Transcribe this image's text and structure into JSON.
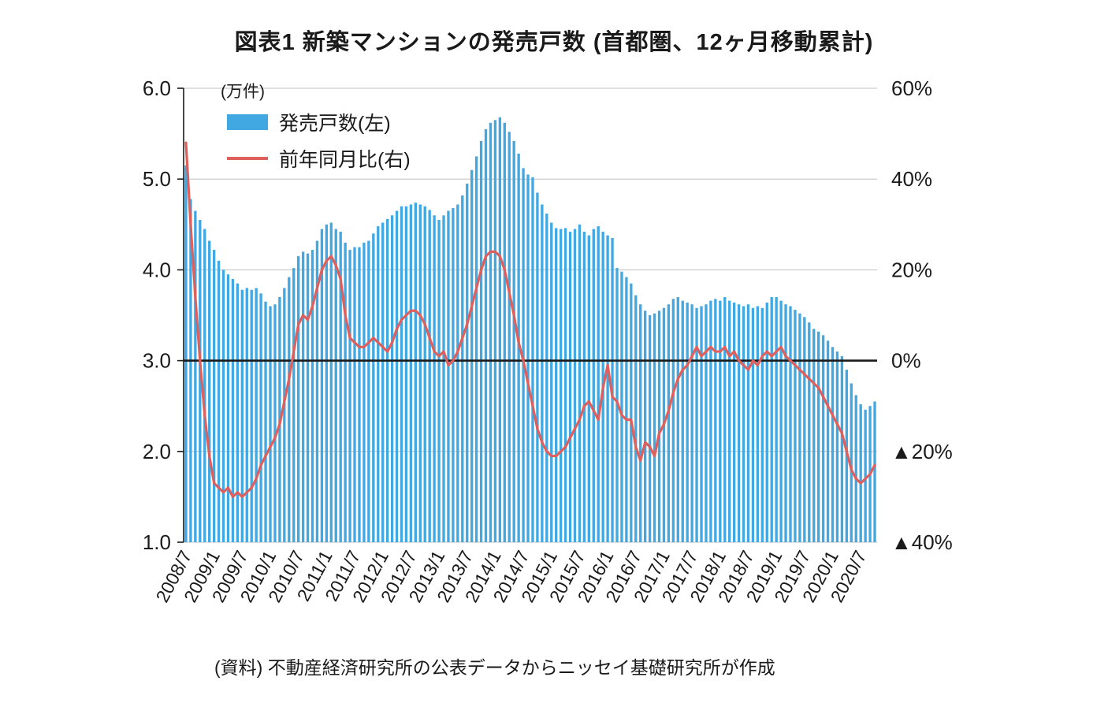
{
  "title": "図表1 新築マンションの発売戸数 (首都圏、12ヶ月移動累計)",
  "source_note": "(資料) 不動産経済研究所の公表データからニッセイ基礎研究所が作成",
  "colors": {
    "bar": "#41A8E1",
    "line": "#DF5F5D",
    "grid": "#BFBFBF",
    "zero_line": "#1a1a1a",
    "axis": "#1a1a1a",
    "text": "#1a1a1a"
  },
  "chart_data": {
    "type": "bar",
    "title": "図表1 新築マンションの発売戸数 (首都圏、12ヶ月移動累計)",
    "left_axis_unit": "(万件)",
    "left_axis_ticks": [
      "6.0",
      "5.0",
      "4.0",
      "3.0",
      "2.0",
      "1.0"
    ],
    "left_axis_range": [
      1.0,
      6.0
    ],
    "right_axis_ticks": [
      "60%",
      "40%",
      "20%",
      "0%",
      "▲20%",
      "▲40%"
    ],
    "right_axis_range": [
      -40,
      60
    ],
    "x_tick_step": 6,
    "x_tick_labels": [
      "2008/7",
      "2009/1",
      "2009/7",
      "2010/1",
      "2010/7",
      "2011/1",
      "2011/7",
      "2012/1",
      "2012/7",
      "2013/1",
      "2013/7",
      "2014/1",
      "2014/7",
      "2015/1",
      "2015/7",
      "2016/1",
      "2016/7",
      "2017/1",
      "2017/7",
      "2018/1",
      "2018/7",
      "2019/1",
      "2019/7",
      "2020/1",
      "2020/7"
    ],
    "categories": [
      "2008/7",
      "2008/8",
      "2008/9",
      "2008/10",
      "2008/11",
      "2008/12",
      "2009/1",
      "2009/2",
      "2009/3",
      "2009/4",
      "2009/5",
      "2009/6",
      "2009/7",
      "2009/8",
      "2009/9",
      "2009/10",
      "2009/11",
      "2009/12",
      "2010/1",
      "2010/2",
      "2010/3",
      "2010/4",
      "2010/5",
      "2010/6",
      "2010/7",
      "2010/8",
      "2010/9",
      "2010/10",
      "2010/11",
      "2010/12",
      "2011/1",
      "2011/2",
      "2011/3",
      "2011/4",
      "2011/5",
      "2011/6",
      "2011/7",
      "2011/8",
      "2011/9",
      "2011/10",
      "2011/11",
      "2011/12",
      "2012/1",
      "2012/2",
      "2012/3",
      "2012/4",
      "2012/5",
      "2012/6",
      "2012/7",
      "2012/8",
      "2012/9",
      "2012/10",
      "2012/11",
      "2012/12",
      "2013/1",
      "2013/2",
      "2013/3",
      "2013/4",
      "2013/5",
      "2013/6",
      "2013/7",
      "2013/8",
      "2013/9",
      "2013/10",
      "2013/11",
      "2013/12",
      "2014/1",
      "2014/2",
      "2014/3",
      "2014/4",
      "2014/5",
      "2014/6",
      "2014/7",
      "2014/8",
      "2014/9",
      "2014/10",
      "2014/11",
      "2014/12",
      "2015/1",
      "2015/2",
      "2015/3",
      "2015/4",
      "2015/5",
      "2015/6",
      "2015/7",
      "2015/8",
      "2015/9",
      "2015/10",
      "2015/11",
      "2015/12",
      "2016/1",
      "2016/2",
      "2016/3",
      "2016/4",
      "2016/5",
      "2016/6",
      "2016/7",
      "2016/8",
      "2016/9",
      "2016/10",
      "2016/11",
      "2016/12",
      "2017/1",
      "2017/2",
      "2017/3",
      "2017/4",
      "2017/5",
      "2017/6",
      "2017/7",
      "2017/8",
      "2017/9",
      "2017/10",
      "2017/11",
      "2017/12",
      "2018/1",
      "2018/2",
      "2018/3",
      "2018/4",
      "2018/5",
      "2018/6",
      "2018/7",
      "2018/8",
      "2018/9",
      "2018/10",
      "2018/11",
      "2018/12",
      "2019/1",
      "2019/2",
      "2019/3",
      "2019/4",
      "2019/5",
      "2019/6",
      "2019/7",
      "2019/8",
      "2019/9",
      "2019/10",
      "2019/11",
      "2019/12",
      "2020/1",
      "2020/2",
      "2020/3",
      "2020/4",
      "2020/5",
      "2020/6",
      "2020/7",
      "2020/8",
      "2020/9",
      "2020/10"
    ],
    "series": [
      {
        "name": "発売戸数(左)",
        "type": "bar",
        "axis": "left",
        "color": "#41A8E1",
        "values": [
          5.15,
          4.78,
          4.65,
          4.55,
          4.45,
          4.32,
          4.22,
          4.1,
          4.0,
          3.95,
          3.9,
          3.85,
          3.78,
          3.8,
          3.78,
          3.8,
          3.74,
          3.65,
          3.6,
          3.62,
          3.7,
          3.8,
          3.92,
          4.02,
          4.15,
          4.2,
          4.18,
          4.22,
          4.32,
          4.45,
          4.5,
          4.52,
          4.45,
          4.42,
          4.3,
          4.22,
          4.25,
          4.25,
          4.3,
          4.32,
          4.4,
          4.48,
          4.52,
          4.56,
          4.6,
          4.65,
          4.7,
          4.7,
          4.72,
          4.74,
          4.72,
          4.7,
          4.66,
          4.6,
          4.55,
          4.6,
          4.65,
          4.68,
          4.72,
          4.82,
          4.95,
          5.1,
          5.25,
          5.42,
          5.55,
          5.62,
          5.65,
          5.68,
          5.62,
          5.52,
          5.42,
          5.28,
          5.12,
          5.05,
          5.02,
          4.85,
          4.72,
          4.62,
          4.52,
          4.46,
          4.45,
          4.46,
          4.42,
          4.45,
          4.5,
          4.42,
          4.38,
          4.45,
          4.48,
          4.42,
          4.38,
          4.35,
          4.02,
          3.98,
          3.92,
          3.85,
          3.72,
          3.62,
          3.55,
          3.5,
          3.52,
          3.55,
          3.58,
          3.62,
          3.68,
          3.7,
          3.66,
          3.64,
          3.62,
          3.58,
          3.6,
          3.62,
          3.66,
          3.68,
          3.66,
          3.7,
          3.66,
          3.64,
          3.62,
          3.6,
          3.62,
          3.58,
          3.6,
          3.58,
          3.64,
          3.7,
          3.7,
          3.66,
          3.62,
          3.6,
          3.56,
          3.52,
          3.48,
          3.42,
          3.35,
          3.32,
          3.28,
          3.22,
          3.15,
          3.1,
          3.05,
          2.9,
          2.75,
          2.62,
          2.52,
          2.46,
          2.5,
          2.55
        ]
      },
      {
        "name": "前年同月比(右)",
        "type": "line",
        "axis": "right",
        "color": "#DF5F5D",
        "values": [
          48,
          30,
          14,
          0,
          -12,
          -21,
          -27,
          -28,
          -29,
          -28,
          -30,
          -29,
          -30,
          -29,
          -28,
          -26,
          -23,
          -21,
          -19,
          -17,
          -14,
          -9,
          -4,
          2,
          8,
          10,
          9,
          12,
          16,
          20,
          22,
          23,
          21,
          18,
          10,
          5,
          4,
          3,
          3,
          4,
          5,
          4,
          3,
          2,
          4,
          7,
          9,
          10,
          11,
          11,
          10,
          8,
          5,
          2,
          1,
          2,
          -1,
          0,
          2,
          5,
          8,
          12,
          16,
          20,
          23,
          24,
          24,
          23,
          20,
          15,
          10,
          4,
          0,
          -5,
          -10,
          -15,
          -18,
          -20,
          -21,
          -21,
          -20,
          -19,
          -17,
          -15,
          -13,
          -10,
          -9,
          -11,
          -13,
          -6,
          -1,
          -8,
          -9,
          -12,
          -13,
          -13,
          -19,
          -22,
          -18,
          -19,
          -21,
          -16,
          -14,
          -11,
          -7,
          -4,
          -2,
          -1,
          1,
          3,
          1,
          2,
          3,
          2,
          2,
          3,
          1,
          2,
          0,
          -1,
          -2,
          0,
          -1,
          1,
          2,
          1,
          2,
          3,
          1,
          0,
          -1,
          -2,
          -3,
          -4,
          -5,
          -6,
          -8,
          -10,
          -12,
          -14,
          -16,
          -20,
          -24,
          -26,
          -27,
          -26,
          -25,
          -23
        ]
      }
    ],
    "zero_line": {
      "axis": "right",
      "value": 0
    },
    "grid": true,
    "legend_position": "top-left-inside"
  }
}
